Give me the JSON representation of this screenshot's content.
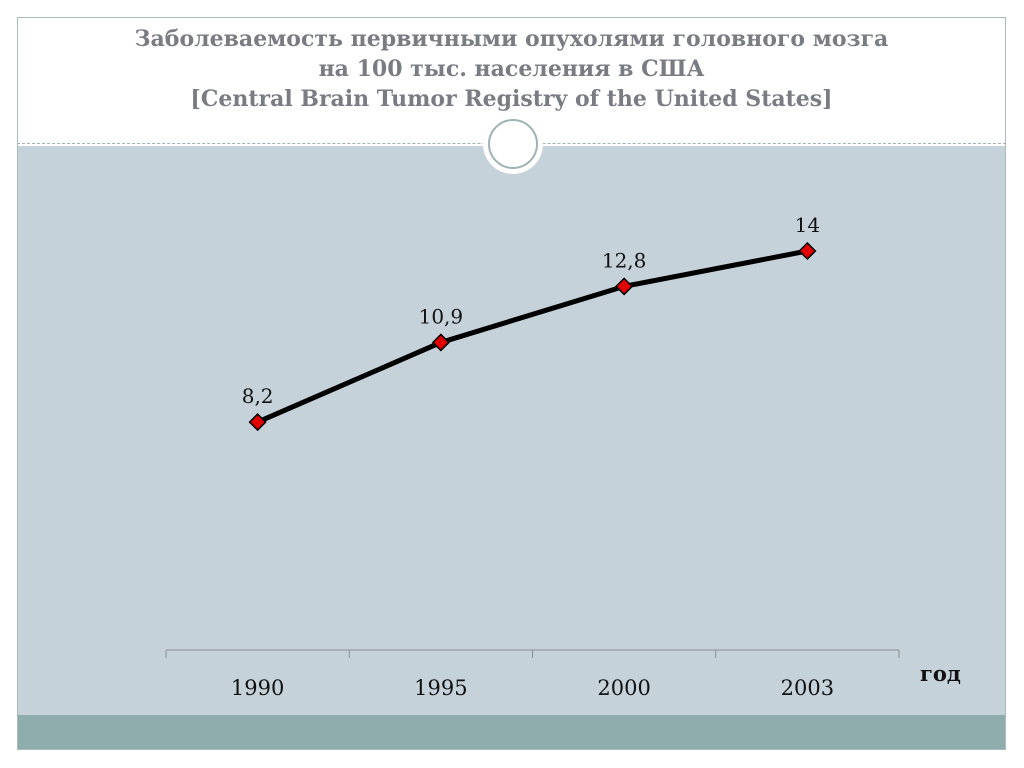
{
  "title": {
    "line1": "Заболеваемость первичными опухолями головного мозга",
    "line2": "на 100 тыс. населения в США",
    "line3": "[Central Brain Tumor Registry of the United States]"
  },
  "chart_data": {
    "type": "line",
    "title": "Заболеваемость первичными опухолями головного мозга на 100 тыс. населения в США [Central Brain Tumor Registry of the United States]",
    "categories": [
      "1990",
      "1995",
      "2000",
      "2003"
    ],
    "series": [
      {
        "values": [
          8.2,
          10.9,
          12.8,
          14
        ],
        "labels": [
          "8,2",
          "10,9",
          "12,8",
          "14"
        ]
      }
    ],
    "xlabel": "год",
    "ylabel": "",
    "ylim": [
      0,
      20
    ],
    "grid": false,
    "legend": "none",
    "colors": {
      "line": "#000000",
      "marker": "#e00000",
      "background": "#c6d2d9"
    }
  }
}
